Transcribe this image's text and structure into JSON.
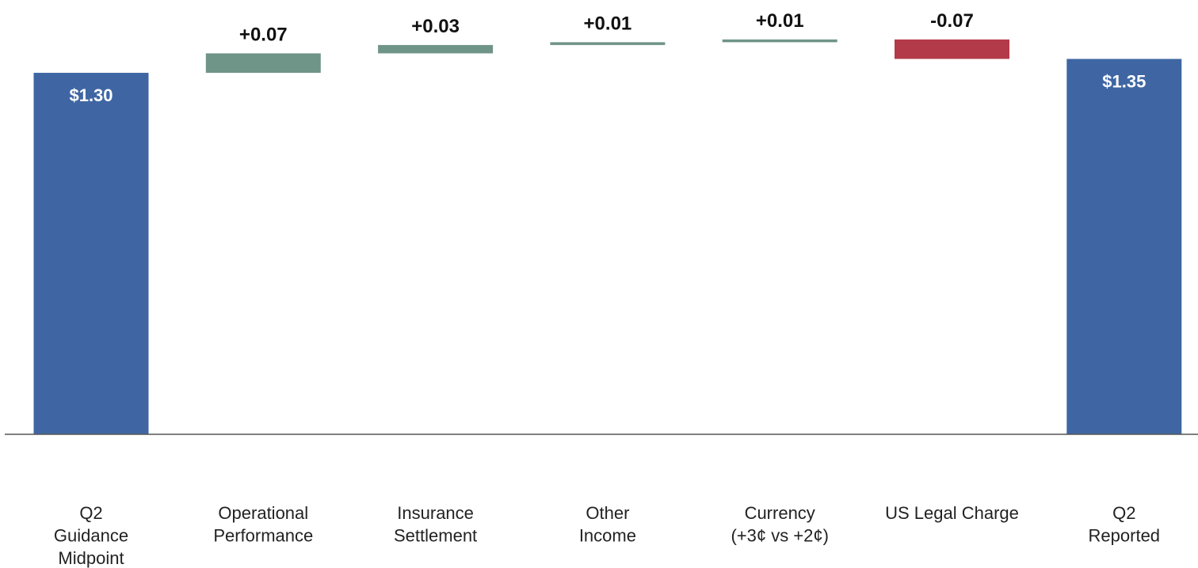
{
  "chart_data": {
    "type": "waterfall",
    "categories": [
      [
        "Q2",
        "Guidance",
        "Midpoint"
      ],
      [
        "Operational",
        "Performance"
      ],
      [
        "Insurance",
        "Settlement"
      ],
      [
        "Other",
        "Income"
      ],
      [
        "Currency",
        "(+3¢ vs +2¢)"
      ],
      [
        "US Legal Charge"
      ],
      [
        "Q2",
        "Reported"
      ]
    ],
    "values": [
      1.3,
      0.07,
      0.03,
      0.01,
      0.01,
      -0.07,
      1.35
    ],
    "kinds": [
      "total",
      "delta",
      "delta",
      "delta",
      "delta",
      "delta",
      "total"
    ],
    "labels": [
      "$1.30",
      "+0.07",
      "+0.03",
      "+0.01",
      "+0.01",
      "-0.07",
      "$1.35"
    ],
    "colors": {
      "total": "#3f66a3",
      "increase": "#6f9488",
      "decrease": "#b33a48",
      "axis": "#555555"
    },
    "ylim": [
      0,
      1.44
    ]
  }
}
